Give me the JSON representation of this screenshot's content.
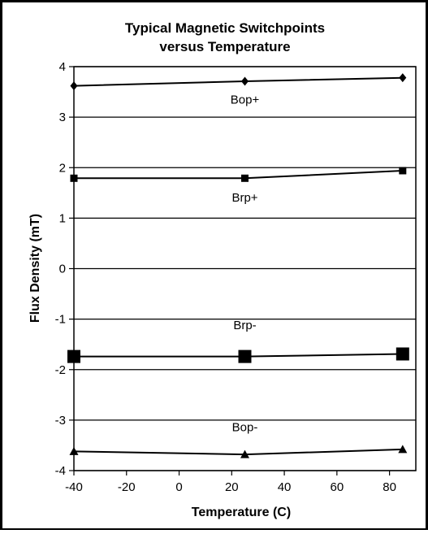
{
  "chart_data": {
    "type": "line",
    "title_lines": [
      "Typical Magnetic Switchpoints",
      "versus Temperature"
    ],
    "xlabel": "Temperature (C)",
    "ylabel": "Flux Density (mT)",
    "xlim": [
      -40,
      90
    ],
    "ylim": [
      -4,
      4
    ],
    "x_ticks": [
      -40,
      -20,
      0,
      20,
      40,
      60,
      80
    ],
    "y_ticks": [
      4,
      3,
      2,
      1,
      0,
      -1,
      -2,
      -3,
      -4
    ],
    "grid": "horizontal",
    "legend": "none",
    "series": [
      {
        "name": "Bop+",
        "marker": "diamond",
        "marker_size": "small",
        "x": [
          -40,
          25,
          85
        ],
        "y": [
          3.62,
          3.71,
          3.78
        ]
      },
      {
        "name": "Brp+",
        "marker": "square",
        "marker_size": "small",
        "x": [
          -40,
          25,
          85
        ],
        "y": [
          1.79,
          1.79,
          1.94
        ]
      },
      {
        "name": "Brp-",
        "marker": "square",
        "marker_size": "large",
        "x": [
          -40,
          25,
          85
        ],
        "y": [
          -1.74,
          -1.74,
          -1.69
        ]
      },
      {
        "name": "Bop-",
        "marker": "triangle",
        "marker_size": "small",
        "x": [
          -40,
          25,
          85
        ],
        "y": [
          -3.62,
          -3.68,
          -3.58
        ]
      }
    ],
    "series_label_positions": [
      {
        "series": "Bop+",
        "x": 25,
        "y": 3.27
      },
      {
        "series": "Brp+",
        "x": 25,
        "y": 1.33
      },
      {
        "series": "Brp-",
        "x": 25,
        "y": -1.2
      },
      {
        "series": "Bop-",
        "x": 25,
        "y": -3.22
      }
    ]
  }
}
